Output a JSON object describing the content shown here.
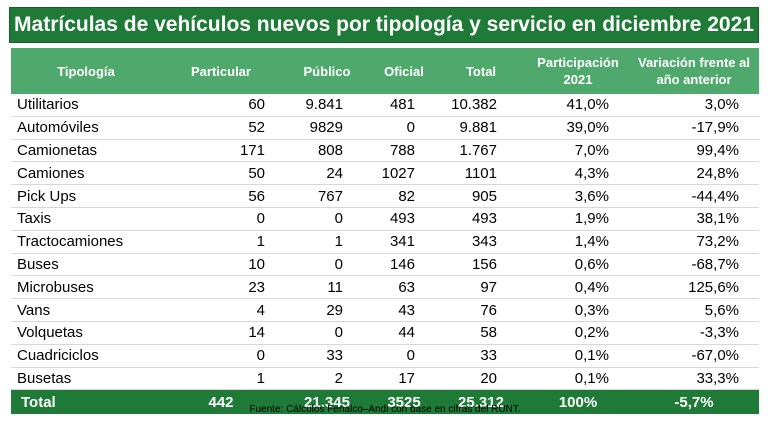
{
  "title": "Matrículas de vehículos nuevos por tipología y servicio en diciembre 2021",
  "columns": [
    "Tipología",
    "Particular",
    "Público",
    "Oficial",
    "Total",
    "Participación 2021",
    "Variación frente al año anterior"
  ],
  "rows": [
    [
      "Utilitarios",
      "60",
      "9.841",
      "481",
      "10.382",
      "41,0%",
      "3,0%"
    ],
    [
      "Automóviles",
      "52",
      "9829",
      "0",
      "9.881",
      "39,0%",
      "-17,9%"
    ],
    [
      "Camionetas",
      "171",
      "808",
      "788",
      "1.767",
      "7,0%",
      "99,4%"
    ],
    [
      "Camiones",
      "50",
      "24",
      "1027",
      "1101",
      "4,3%",
      "24,8%"
    ],
    [
      "Pick Ups",
      "56",
      "767",
      "82",
      "905",
      "3,6%",
      "-44,4%"
    ],
    [
      "Taxis",
      "0",
      "0",
      "493",
      "493",
      "1,9%",
      "38,1%"
    ],
    [
      "Tractocamiones",
      "1",
      "1",
      "341",
      "343",
      "1,4%",
      "73,2%"
    ],
    [
      "Buses",
      "10",
      "0",
      "146",
      "156",
      "0,6%",
      "-68,7%"
    ],
    [
      "Microbuses",
      "23",
      "11",
      "63",
      "97",
      "0,4%",
      "125,6%"
    ],
    [
      "Vans",
      "4",
      "29",
      "43",
      "76",
      "0,3%",
      "5,6%"
    ],
    [
      "Volquetas",
      "14",
      "0",
      "44",
      "58",
      "0,2%",
      "-3,3%"
    ],
    [
      "Cuadriciclos",
      "0",
      "33",
      "0",
      "33",
      "0,1%",
      "-67,0%"
    ],
    [
      "Busetas",
      "1",
      "2",
      "17",
      "20",
      "0,1%",
      "33,3%"
    ]
  ],
  "total": [
    "Total",
    "442",
    "21.345",
    "3525",
    "25.312",
    "100%",
    "-5,7%"
  ],
  "source": "Fuente: Cálculos Fenalco–Andi con base en cifras del RUNT.",
  "colors": {
    "title_bg": "#1e7a36",
    "header_bg": "#4fa96c",
    "total_bg": "#1e7a36"
  }
}
